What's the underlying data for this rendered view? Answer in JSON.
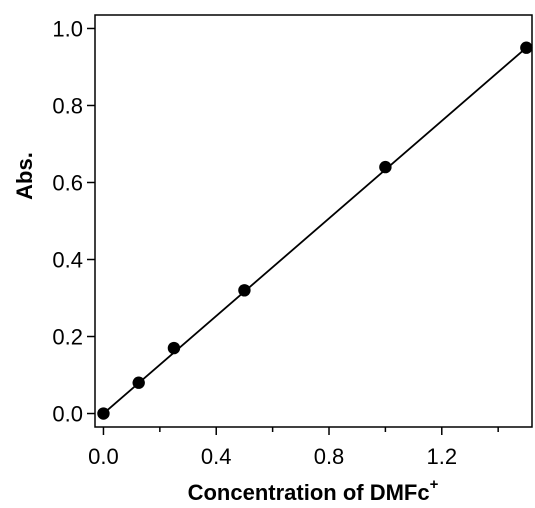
{
  "chart_data": {
    "type": "scatter",
    "title": "",
    "xlabel": "Concentration of DMFc",
    "xlabel_superscript": "+",
    "ylabel": "Abs.",
    "xlim": [
      -0.03,
      1.52
    ],
    "ylim": [
      -0.035,
      1.035
    ],
    "x_ticks": [
      0.0,
      0.4,
      0.8,
      1.2
    ],
    "x_tick_labels": [
      "0.0",
      "0.4",
      "0.8",
      "1.2"
    ],
    "x_minor_ticks": [
      0.2,
      0.6,
      1.0,
      1.4
    ],
    "y_ticks": [
      0.0,
      0.2,
      0.4,
      0.6,
      0.8,
      1.0
    ],
    "y_tick_labels": [
      "0.0",
      "0.2",
      "0.4",
      "0.6",
      "0.8",
      "1.0"
    ],
    "grid": false,
    "legend": "none",
    "series": [
      {
        "type": "scatter",
        "x": [
          0.0,
          0.125,
          0.25,
          0.5,
          1.0,
          1.5
        ],
        "y": [
          0.0,
          0.08,
          0.17,
          0.32,
          0.64,
          0.95
        ],
        "color": "#000000"
      },
      {
        "type": "line",
        "x": [
          0.0,
          1.5
        ],
        "y": [
          0.0,
          0.95
        ],
        "color": "#000000"
      }
    ]
  }
}
